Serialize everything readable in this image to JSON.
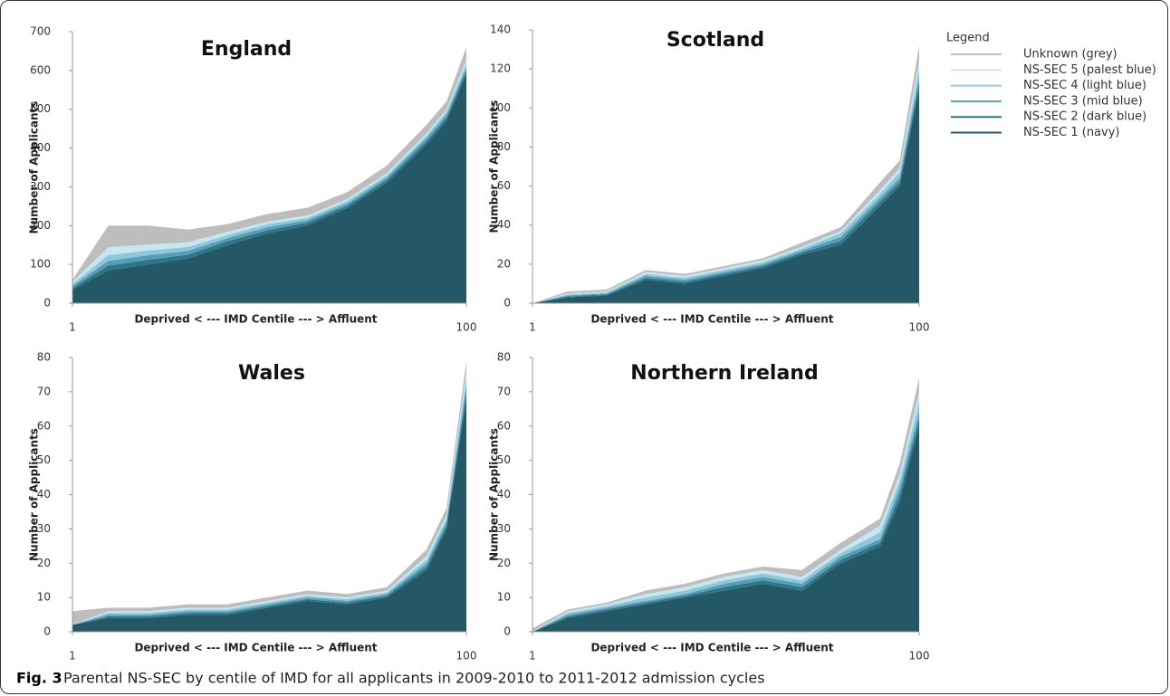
{
  "legend": {
    "title": "Legend",
    "series": [
      {
        "name": "Unknown (grey)",
        "color": "#bdbdbd"
      },
      {
        "name": "NS-SEC 5 (palest blue)",
        "color": "#c6e6f0"
      },
      {
        "name": "NS-SEC 4 (light blue)",
        "color": "#8ec7d9"
      },
      {
        "name": "NS-SEC 3 (mid blue)",
        "color": "#559fb6"
      },
      {
        "name": "NS-SEC 2 (dark blue)",
        "color": "#2f7589"
      },
      {
        "name": "NS-SEC 1 (navy)",
        "color": "#245866"
      }
    ]
  },
  "chart_data": [
    {
      "type": "area",
      "title": "England",
      "ylabel": "Number of Applicants",
      "xlabel": "Deprived < --- IMD Centile --- > Affluent",
      "x": [
        1,
        10,
        20,
        30,
        40,
        50,
        60,
        70,
        80,
        90,
        95,
        100
      ],
      "xlim": [
        1,
        100
      ],
      "xticks": [
        1,
        100
      ],
      "ylim": [
        0,
        700
      ],
      "yticks": [
        0,
        100,
        200,
        300,
        400,
        500,
        600,
        700
      ],
      "series": [
        {
          "values": [
            5,
            56,
            49,
            33,
            20,
            20,
            20,
            18,
            20,
            22,
            20,
            32
          ]
        },
        {
          "values": [
            5,
            20,
            15,
            12,
            8,
            6,
            6,
            5,
            5,
            6,
            6,
            10
          ]
        },
        {
          "values": [
            5,
            15,
            12,
            10,
            8,
            8,
            6,
            6,
            6,
            6,
            8,
            10
          ]
        },
        {
          "values": [
            5,
            12,
            12,
            10,
            8,
            8,
            6,
            6,
            6,
            8,
            8,
            8
          ]
        },
        {
          "values": [
            5,
            12,
            12,
            10,
            10,
            8,
            8,
            6,
            8,
            8,
            8,
            10
          ]
        },
        {
          "values": [
            35,
            85,
            100,
            115,
            150,
            180,
            200,
            245,
            310,
            410,
            470,
            590
          ]
        }
      ]
    },
    {
      "type": "area",
      "title": "Scotland",
      "ylabel": "Number of Applicants",
      "xlabel": "Deprived < --- IMD Centile --- > Affluent",
      "x": [
        1,
        10,
        20,
        30,
        40,
        50,
        60,
        70,
        80,
        90,
        95,
        100
      ],
      "xlim": [
        1,
        100
      ],
      "xticks": [
        1,
        100
      ],
      "ylim": [
        0,
        140
      ],
      "yticks": [
        0,
        20,
        40,
        60,
        80,
        100,
        120,
        140
      ],
      "series": [
        {
          "values": [
            0,
            1,
            1,
            1,
            1,
            1,
            1,
            2,
            2,
            4,
            4,
            8
          ]
        },
        {
          "values": [
            0,
            0.5,
            0.5,
            1,
            1,
            1,
            1,
            1,
            1,
            2,
            2,
            4
          ]
        },
        {
          "values": [
            0,
            0.5,
            0.5,
            1,
            1,
            1,
            1,
            1,
            2,
            2,
            3,
            4
          ]
        },
        {
          "values": [
            0,
            0.5,
            0.5,
            1,
            1,
            1,
            1,
            1,
            2,
            2,
            2,
            3
          ]
        },
        {
          "values": [
            0,
            0.5,
            0.5,
            1,
            1,
            1,
            1,
            1,
            2,
            2,
            2,
            3
          ]
        },
        {
          "values": [
            0,
            3,
            4,
            12,
            10,
            14,
            18,
            25,
            30,
            50,
            60,
            110
          ]
        }
      ]
    },
    {
      "type": "area",
      "title": "Wales",
      "ylabel": "Number of Applicants",
      "xlabel": "Deprived < --- IMD Centile --- > Affluent",
      "x": [
        1,
        10,
        20,
        30,
        40,
        50,
        60,
        70,
        80,
        90,
        95,
        100
      ],
      "xlim": [
        1,
        100
      ],
      "xticks": [
        1,
        100
      ],
      "ylim": [
        0,
        80
      ],
      "yticks": [
        0,
        10,
        20,
        30,
        40,
        50,
        60,
        70,
        80
      ],
      "series": [
        {
          "values": [
            4,
            1,
            1,
            1,
            1,
            1,
            1,
            1,
            1,
            2,
            2,
            3
          ]
        },
        {
          "values": [
            0,
            0.5,
            0.5,
            0.5,
            0.5,
            0.5,
            0.5,
            0.5,
            0.5,
            1,
            1,
            2
          ]
        },
        {
          "values": [
            0,
            0.5,
            0.5,
            0.5,
            0.5,
            0.5,
            0.5,
            0.5,
            0.5,
            1,
            1,
            2
          ]
        },
        {
          "values": [
            0,
            0.5,
            0.5,
            0.5,
            0.5,
            0.5,
            0.5,
            0.5,
            0.5,
            1,
            1,
            2
          ]
        },
        {
          "values": [
            0,
            0.5,
            0.5,
            0.5,
            0.5,
            0.5,
            0.5,
            0.5,
            0.5,
            1,
            1,
            2
          ]
        },
        {
          "values": [
            2,
            4,
            4,
            5,
            5,
            7,
            9,
            8,
            10,
            18,
            30,
            68
          ]
        }
      ]
    },
    {
      "type": "area",
      "title": "Northern Ireland",
      "ylabel": "Number of Applicants",
      "xlabel": "Deprived < --- IMD Centile --- > Affluent",
      "x": [
        1,
        10,
        20,
        30,
        40,
        50,
        60,
        70,
        80,
        90,
        95,
        100
      ],
      "xlim": [
        1,
        100
      ],
      "xticks": [
        1,
        100
      ],
      "ylim": [
        0,
        80
      ],
      "yticks": [
        0,
        10,
        20,
        30,
        40,
        50,
        60,
        70,
        80
      ],
      "series": [
        {
          "values": [
            1,
            0.5,
            0.5,
            1,
            1,
            1,
            1,
            2,
            2,
            2,
            3,
            4
          ]
        },
        {
          "values": [
            0,
            0.5,
            0.5,
            1,
            1,
            1,
            1,
            1,
            1,
            2,
            2,
            3
          ]
        },
        {
          "values": [
            0,
            0.5,
            0.5,
            1,
            1,
            1,
            1,
            1,
            1,
            2,
            2,
            3
          ]
        },
        {
          "values": [
            0,
            0.5,
            0.5,
            0.5,
            0.5,
            1,
            1,
            1,
            1,
            1,
            2,
            2
          ]
        },
        {
          "values": [
            0,
            0.5,
            0.5,
            0.5,
            0.5,
            1,
            1,
            1,
            1,
            1,
            2,
            2
          ]
        },
        {
          "values": [
            0,
            4,
            6,
            8,
            10,
            12,
            14,
            12,
            20,
            25,
            38,
            60
          ]
        }
      ]
    }
  ],
  "caption": {
    "label": "Fig. 3",
    "text": "Parental NS-SEC by centile of IMD for all applicants in 2009-2010 to 2011-2012 admission cycles"
  }
}
